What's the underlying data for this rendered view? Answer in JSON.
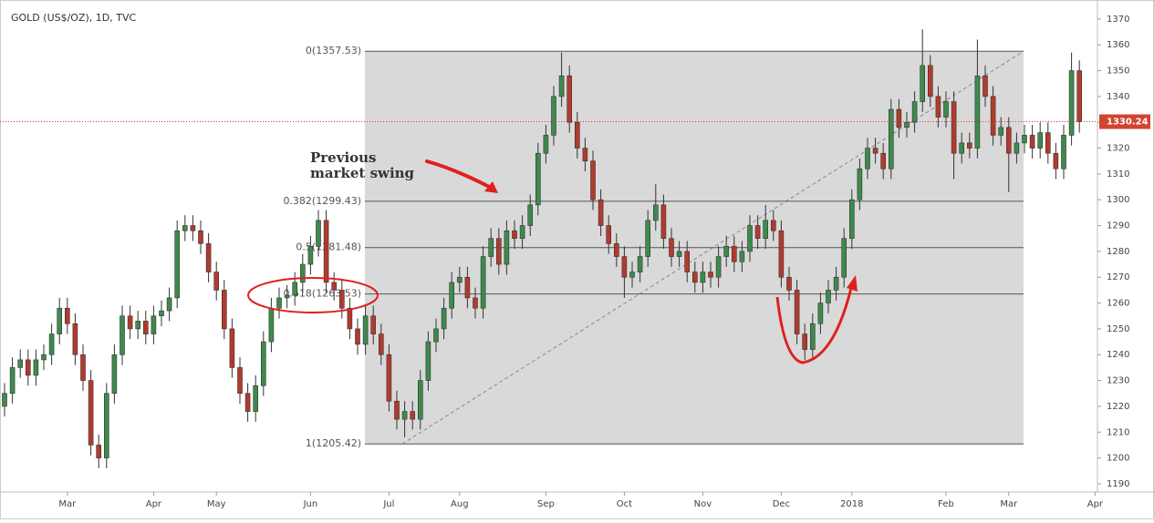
{
  "chart_data": {
    "type": "candlestick",
    "title": "GOLD (US$/OZ), 1D, TVC",
    "categories": [
      null,
      null,
      null,
      null,
      null,
      null,
      null,
      null,
      "Mar",
      null,
      null,
      null,
      null,
      null,
      null,
      null,
      null,
      null,
      null,
      "Apr",
      null,
      null,
      null,
      null,
      null,
      null,
      null,
      "May",
      null,
      null,
      null,
      null,
      null,
      null,
      null,
      null,
      null,
      null,
      null,
      "Jun",
      null,
      null,
      null,
      null,
      null,
      null,
      null,
      null,
      null,
      "Jul",
      null,
      null,
      null,
      null,
      null,
      null,
      null,
      null,
      "Aug",
      null,
      null,
      null,
      null,
      null,
      null,
      null,
      null,
      null,
      null,
      "Sep",
      null,
      null,
      null,
      null,
      null,
      null,
      null,
      null,
      null,
      "Oct",
      null,
      null,
      null,
      null,
      null,
      null,
      null,
      null,
      null,
      "Nov",
      null,
      null,
      null,
      null,
      null,
      null,
      null,
      null,
      null,
      "Dec",
      null,
      null,
      null,
      null,
      null,
      null,
      null,
      null,
      "2018",
      null,
      null,
      null,
      null,
      null,
      null,
      null,
      null,
      null,
      null,
      null,
      "Feb",
      null,
      null,
      null,
      null,
      null,
      null,
      null,
      "Mar",
      null,
      null,
      null,
      null,
      null,
      null,
      null,
      null,
      null,
      null,
      "Apr"
    ],
    "open": [
      1220,
      1225,
      1235,
      1238,
      1232,
      1238,
      1240,
      1248,
      1258,
      1252,
      1240,
      1230,
      1205,
      1200,
      1225,
      1240,
      1255,
      1250,
      1253,
      1248,
      1255,
      1257,
      1262,
      1288,
      1290,
      1288,
      1283,
      1272,
      1265,
      1250,
      1235,
      1225,
      1218,
      1228,
      1245,
      1258,
      1262,
      1263,
      1268,
      1275,
      1282,
      1292,
      1268,
      1265,
      1258,
      1250,
      1244,
      1255,
      1248,
      1240,
      1222,
      1215,
      1218,
      1215,
      1230,
      1245,
      1250,
      1258,
      1268,
      1270,
      1262,
      1258,
      1278,
      1285,
      1275,
      1288,
      1285,
      1290,
      1298,
      1318,
      1325,
      1340,
      1348,
      1330,
      1320,
      1315,
      1300,
      1290,
      1283,
      1278,
      1270,
      1272,
      1278,
      1292,
      1298,
      1285,
      1278,
      1280,
      1272,
      1268,
      1272,
      1270,
      1278,
      1282,
      1276,
      1280,
      1290,
      1285,
      1292,
      1288,
      1270,
      1265,
      1248,
      1242,
      1252,
      1260,
      1265,
      1270,
      1285,
      1300,
      1312,
      1320,
      1318,
      1312,
      1335,
      1328,
      1330,
      1338,
      1352,
      1340,
      1332,
      1338,
      1318,
      1322,
      1320,
      1348,
      1340,
      1325,
      1328,
      1318,
      1322,
      1325,
      1320,
      1326,
      1318,
      1312,
      1325,
      1350,
      null,
      null
    ],
    "high": [
      1229,
      1239,
      1242,
      1242,
      1242,
      1244,
      1252,
      1262,
      1262,
      1256,
      1244,
      1234,
      1209,
      1229,
      1244,
      1259,
      1259,
      1257,
      1257,
      1259,
      1261,
      1266,
      1292,
      1294,
      1294,
      1292,
      1287,
      1276,
      1269,
      1254,
      1239,
      1229,
      1232,
      1249,
      1262,
      1266,
      1267,
      1272,
      1279,
      1286,
      1296,
      1296,
      1272,
      1269,
      1262,
      1254,
      1259,
      1259,
      1252,
      1244,
      1226,
      1222,
      1222,
      1234,
      1249,
      1254,
      1262,
      1272,
      1274,
      1274,
      1266,
      1282,
      1289,
      1289,
      1292,
      1292,
      1294,
      1302,
      1322,
      1329,
      1344,
      1357,
      1352,
      1334,
      1324,
      1319,
      1304,
      1294,
      1287,
      1282,
      1276,
      1282,
      1296,
      1306,
      1302,
      1289,
      1284,
      1284,
      1276,
      1276,
      1276,
      1282,
      1286,
      1286,
      1284,
      1294,
      1294,
      1298,
      1296,
      1292,
      1274,
      1269,
      1252,
      1256,
      1264,
      1269,
      1274,
      1289,
      1304,
      1316,
      1324,
      1324,
      1322,
      1339,
      1339,
      1334,
      1342,
      1366,
      1356,
      1344,
      1342,
      1342,
      1326,
      1326,
      1362,
      1352,
      1344,
      1332,
      1332,
      1326,
      1329,
      1329,
      1330,
      1330,
      1322,
      1329,
      1357,
      1354,
      null,
      null
    ],
    "low": [
      1216,
      1221,
      1231,
      1228,
      1228,
      1234,
      1236,
      1244,
      1248,
      1236,
      1226,
      1201,
      1196,
      1196,
      1221,
      1236,
      1246,
      1246,
      1244,
      1244,
      1251,
      1253,
      1258,
      1284,
      1284,
      1279,
      1268,
      1261,
      1246,
      1231,
      1221,
      1214,
      1214,
      1224,
      1241,
      1254,
      1258,
      1259,
      1264,
      1271,
      1278,
      1264,
      1261,
      1254,
      1246,
      1240,
      1240,
      1244,
      1236,
      1218,
      1211,
      1208,
      1211,
      1211,
      1226,
      1241,
      1246,
      1254,
      1264,
      1258,
      1254,
      1254,
      1274,
      1271,
      1271,
      1281,
      1281,
      1286,
      1294,
      1314,
      1321,
      1336,
      1326,
      1316,
      1311,
      1296,
      1286,
      1279,
      1274,
      1262,
      1266,
      1268,
      1274,
      1288,
      1281,
      1274,
      1274,
      1268,
      1264,
      1264,
      1266,
      1266,
      1274,
      1272,
      1272,
      1276,
      1281,
      1281,
      1284,
      1266,
      1261,
      1244,
      1238,
      1238,
      1248,
      1256,
      1261,
      1266,
      1281,
      1296,
      1308,
      1314,
      1308,
      1308,
      1324,
      1324,
      1326,
      1334,
      1336,
      1328,
      1328,
      1308,
      1314,
      1316,
      1316,
      1336,
      1321,
      1321,
      1303,
      1314,
      1318,
      1316,
      1316,
      1314,
      1308,
      1308,
      1321,
      1326,
      null,
      null
    ],
    "close": [
      1225,
      1235,
      1238,
      1232,
      1238,
      1240,
      1248,
      1258,
      1252,
      1240,
      1230,
      1205,
      1200,
      1225,
      1240,
      1255,
      1250,
      1253,
      1248,
      1255,
      1257,
      1262,
      1288,
      1290,
      1288,
      1283,
      1272,
      1265,
      1250,
      1235,
      1225,
      1218,
      1228,
      1245,
      1258,
      1262,
      1263,
      1268,
      1275,
      1282,
      1292,
      1268,
      1265,
      1258,
      1250,
      1244,
      1255,
      1248,
      1240,
      1222,
      1215,
      1218,
      1215,
      1230,
      1245,
      1250,
      1258,
      1268,
      1270,
      1262,
      1258,
      1278,
      1285,
      1275,
      1288,
      1285,
      1290,
      1298,
      1318,
      1325,
      1340,
      1348,
      1330,
      1320,
      1315,
      1300,
      1290,
      1283,
      1278,
      1270,
      1272,
      1278,
      1292,
      1298,
      1285,
      1278,
      1280,
      1272,
      1268,
      1272,
      1270,
      1278,
      1282,
      1276,
      1280,
      1290,
      1285,
      1292,
      1288,
      1270,
      1265,
      1248,
      1242,
      1252,
      1260,
      1265,
      1270,
      1285,
      1300,
      1312,
      1320,
      1318,
      1312,
      1335,
      1328,
      1330,
      1338,
      1352,
      1340,
      1332,
      1338,
      1318,
      1322,
      1320,
      1348,
      1340,
      1325,
      1328,
      1318,
      1322,
      1325,
      1320,
      1326,
      1318,
      1312,
      1325,
      1350,
      1330.24,
      null,
      null
    ],
    "colors": {
      "up": "#3e8a4c",
      "down": "#b23a2e"
    },
    "ylim": [
      1186.8,
      1375.6
    ],
    "yticks": [
      1190,
      1200,
      1210,
      1220,
      1230,
      1240,
      1250,
      1260,
      1270,
      1280,
      1290,
      1300,
      1310,
      1320,
      1330,
      1340,
      1350,
      1360,
      1370
    ],
    "last_price": 1330.24,
    "fib_levels": [
      {
        "value": 1357.53,
        "label": "0(1357.53)"
      },
      {
        "value": 1299.43,
        "label": "0.382(1299.43)"
      },
      {
        "value": 1281.48,
        "label": "0.5(1281.48)"
      },
      {
        "value": 1263.53,
        "label": "0.618(1263.53)"
      },
      {
        "value": 1205.42,
        "label": "1(1205.42)"
      }
    ],
    "annotation": [
      "Previous",
      "market swing"
    ]
  }
}
